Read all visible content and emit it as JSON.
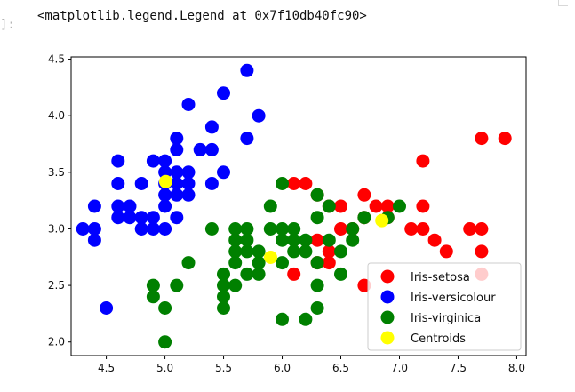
{
  "cell": {
    "prompt": "]:",
    "output_text": "<matplotlib.legend.Legend at 0x7f10db40fc90>"
  },
  "chart_data": {
    "type": "scatter",
    "title": "",
    "xlabel": "",
    "ylabel": "",
    "xlim": [
      4.2,
      8.08
    ],
    "ylim": [
      1.88,
      4.52
    ],
    "xticks": [
      "4.5",
      "5.0",
      "5.5",
      "6.0",
      "6.5",
      "7.0",
      "7.5",
      "8.0"
    ],
    "yticks": [
      "2.0",
      "2.5",
      "3.0",
      "3.5",
      "4.0",
      "4.5"
    ],
    "grid": false,
    "legend_position": "lower-right",
    "series": [
      {
        "name": "Iris-setosa",
        "color": "#ff0000",
        "points": [
          [
            6.1,
            3.4
          ],
          [
            6.2,
            3.4
          ],
          [
            6.3,
            3.3
          ],
          [
            6.4,
            3.2
          ],
          [
            6.5,
            3.2
          ],
          [
            6.7,
            3.3
          ],
          [
            6.8,
            3.2
          ],
          [
            6.9,
            3.2
          ],
          [
            6.7,
            3.1
          ],
          [
            6.9,
            3.1
          ],
          [
            7.1,
            3.0
          ],
          [
            7.2,
            3.0
          ],
          [
            7.3,
            2.9
          ],
          [
            7.4,
            2.8
          ],
          [
            7.6,
            3.0
          ],
          [
            7.7,
            3.0
          ],
          [
            7.7,
            2.8
          ],
          [
            7.2,
            3.2
          ],
          [
            7.2,
            3.6
          ],
          [
            7.7,
            3.8
          ],
          [
            7.9,
            3.8
          ],
          [
            7.7,
            2.6
          ],
          [
            6.1,
            2.6
          ],
          [
            6.3,
            2.9
          ],
          [
            6.4,
            2.8
          ],
          [
            6.5,
            3.0
          ],
          [
            6.4,
            2.7
          ],
          [
            6.7,
            2.5
          ],
          [
            6.3,
            2.7
          ],
          [
            6.6,
            3.0
          ]
        ]
      },
      {
        "name": "Iris-versicolour",
        "color": "#0000ff",
        "points": [
          [
            5.7,
            4.4
          ],
          [
            5.5,
            4.2
          ],
          [
            5.2,
            4.1
          ],
          [
            5.8,
            4.0
          ],
          [
            5.4,
            3.9
          ],
          [
            5.1,
            3.8
          ],
          [
            5.7,
            3.8
          ],
          [
            5.1,
            3.7
          ],
          [
            5.3,
            3.7
          ],
          [
            5.4,
            3.7
          ],
          [
            4.6,
            3.6
          ],
          [
            5.0,
            3.6
          ],
          [
            5.1,
            3.5
          ],
          [
            5.2,
            3.5
          ],
          [
            5.0,
            3.5
          ],
          [
            5.5,
            3.5
          ],
          [
            4.8,
            3.4
          ],
          [
            4.6,
            3.4
          ],
          [
            5.4,
            3.4
          ],
          [
            5.1,
            3.4
          ],
          [
            5.0,
            3.4
          ],
          [
            5.2,
            3.4
          ],
          [
            5.1,
            3.3
          ],
          [
            5.0,
            3.3
          ],
          [
            4.4,
            3.2
          ],
          [
            4.6,
            3.2
          ],
          [
            4.7,
            3.2
          ],
          [
            5.0,
            3.2
          ],
          [
            4.8,
            3.1
          ],
          [
            4.9,
            3.1
          ],
          [
            4.6,
            3.1
          ],
          [
            5.1,
            3.1
          ],
          [
            4.3,
            3.0
          ],
          [
            4.4,
            3.0
          ],
          [
            4.8,
            3.0
          ],
          [
            4.9,
            3.0
          ],
          [
            5.0,
            3.0
          ],
          [
            4.4,
            2.9
          ],
          [
            4.5,
            2.3
          ],
          [
            4.9,
            3.6
          ],
          [
            5.2,
            3.3
          ],
          [
            4.7,
            3.1
          ]
        ]
      },
      {
        "name": "Iris-virginica",
        "color": "#008000",
        "points": [
          [
            6.0,
            3.4
          ],
          [
            6.3,
            3.3
          ],
          [
            5.9,
            3.2
          ],
          [
            6.4,
            3.2
          ],
          [
            6.3,
            3.1
          ],
          [
            6.7,
            3.1
          ],
          [
            6.9,
            3.1
          ],
          [
            7.0,
            3.2
          ],
          [
            5.4,
            3.0
          ],
          [
            5.6,
            3.0
          ],
          [
            5.7,
            3.0
          ],
          [
            5.9,
            3.0
          ],
          [
            6.0,
            3.0
          ],
          [
            6.1,
            3.0
          ],
          [
            6.6,
            3.0
          ],
          [
            5.6,
            2.9
          ],
          [
            5.7,
            2.9
          ],
          [
            6.0,
            2.9
          ],
          [
            6.1,
            2.9
          ],
          [
            6.2,
            2.9
          ],
          [
            6.4,
            2.9
          ],
          [
            6.6,
            2.9
          ],
          [
            5.7,
            2.8
          ],
          [
            5.8,
            2.8
          ],
          [
            6.1,
            2.8
          ],
          [
            6.2,
            2.8
          ],
          [
            6.5,
            2.8
          ],
          [
            5.6,
            2.7
          ],
          [
            5.8,
            2.7
          ],
          [
            6.0,
            2.7
          ],
          [
            6.3,
            2.7
          ],
          [
            5.2,
            2.7
          ],
          [
            5.5,
            2.6
          ],
          [
            5.7,
            2.6
          ],
          [
            5.6,
            2.5
          ],
          [
            5.5,
            2.5
          ],
          [
            6.3,
            2.5
          ],
          [
            4.9,
            2.5
          ],
          [
            4.9,
            2.4
          ],
          [
            5.5,
            2.4
          ],
          [
            5.1,
            2.5
          ],
          [
            5.0,
            2.3
          ],
          [
            5.5,
            2.3
          ],
          [
            6.3,
            2.3
          ],
          [
            6.0,
            2.2
          ],
          [
            6.2,
            2.2
          ],
          [
            5.0,
            2.0
          ],
          [
            5.6,
            2.8
          ],
          [
            5.8,
            2.6
          ],
          [
            6.5,
            2.6
          ]
        ]
      },
      {
        "name": "Centroids",
        "color": "#ffff00",
        "points": [
          [
            5.006,
            3.418
          ],
          [
            5.9016,
            2.748
          ],
          [
            6.85,
            3.0737
          ]
        ]
      }
    ]
  }
}
